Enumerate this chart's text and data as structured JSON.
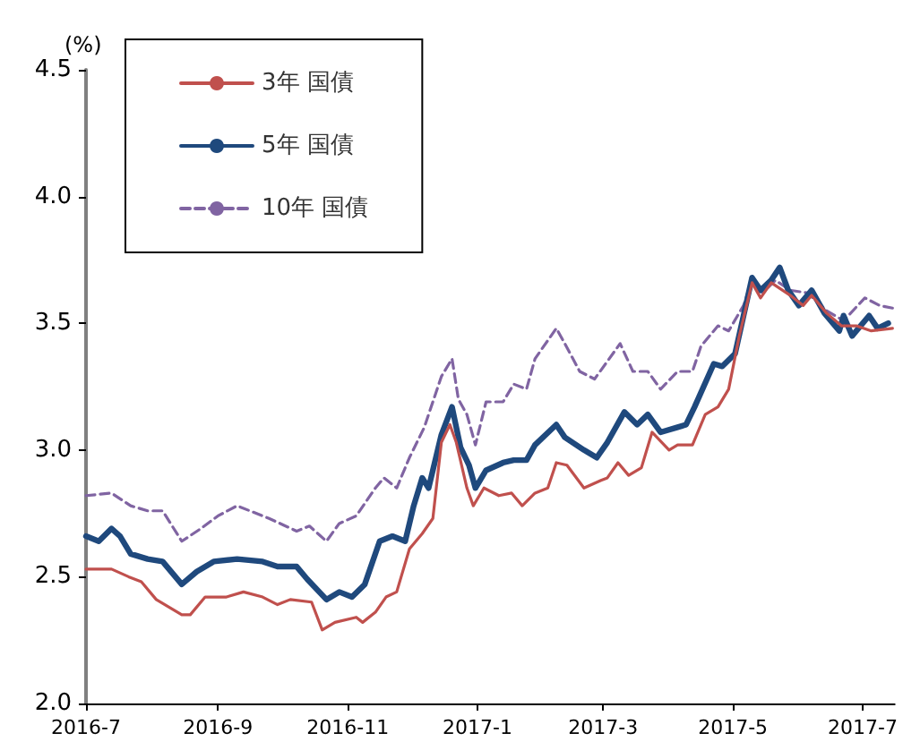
{
  "chart_data": {
    "type": "line",
    "ylabel": "(%)",
    "xlim": [
      "2016-07-01",
      "2017-07-16"
    ],
    "xticks": [
      {
        "value": "2016-07",
        "label": "2016-7"
      },
      {
        "value": "2016-09",
        "label": "2016-9"
      },
      {
        "value": "2016-11",
        "label": "2016-11"
      },
      {
        "value": "2017-01",
        "label": "2017-1"
      },
      {
        "value": "2017-03",
        "label": "2017-3"
      },
      {
        "value": "2017-05",
        "label": "2017-5"
      },
      {
        "value": "2017-07",
        "label": "2017-7"
      }
    ],
    "ylim": [
      2.0,
      4.5
    ],
    "yticks": [
      {
        "value": 2,
        "label": "2.0"
      },
      {
        "value": 2.5,
        "label": "2.5"
      },
      {
        "value": 3,
        "label": "3.0"
      },
      {
        "value": 3.5,
        "label": "3.5"
      },
      {
        "value": 4,
        "label": "4.0"
      },
      {
        "value": 4.5,
        "label": "4.5"
      }
    ],
    "grid": false,
    "legend": "top left",
    "marker": "none",
    "series": [
      {
        "name": "3年 国債",
        "color": "#c0504d",
        "line_style": "solid",
        "x": [
          "2016-07-01",
          "2016-07-13",
          "2016-07-21",
          "2016-07-27",
          "2016-08-03",
          "2016-08-15",
          "2016-08-19",
          "2016-08-26",
          "2016-09-05",
          "2016-09-13",
          "2016-09-22",
          "2016-09-29",
          "2016-10-05",
          "2016-10-15",
          "2016-10-20",
          "2016-10-26",
          "2016-11-05",
          "2016-11-08",
          "2016-11-14",
          "2016-11-19",
          "2016-11-24",
          "2016-11-30",
          "2016-12-06",
          "2016-12-11",
          "2016-12-15",
          "2016-12-19",
          "2016-12-22",
          "2016-12-27",
          "2016-12-30",
          "2017-01-04",
          "2017-01-11",
          "2017-01-17",
          "2017-01-22",
          "2017-01-28",
          "2017-02-03",
          "2017-02-07",
          "2017-02-12",
          "2017-02-20",
          "2017-02-28",
          "2017-03-03",
          "2017-03-08",
          "2017-03-13",
          "2017-03-19",
          "2017-03-24",
          "2017-04-01",
          "2017-04-05",
          "2017-04-12",
          "2017-04-18",
          "2017-04-24",
          "2017-04-29",
          "2017-05-04",
          "2017-05-10",
          "2017-05-14",
          "2017-05-19",
          "2017-05-28",
          "2017-06-03",
          "2017-06-07",
          "2017-06-14",
          "2017-06-21",
          "2017-06-28",
          "2017-07-05",
          "2017-07-15"
        ],
        "values": [
          2.53,
          2.53,
          2.5,
          2.48,
          2.41,
          2.35,
          2.35,
          2.42,
          2.42,
          2.44,
          2.42,
          2.39,
          2.41,
          2.4,
          2.29,
          2.32,
          2.34,
          2.32,
          2.36,
          2.42,
          2.44,
          2.61,
          2.67,
          2.73,
          3.03,
          3.1,
          3.03,
          2.85,
          2.78,
          2.85,
          2.82,
          2.83,
          2.78,
          2.83,
          2.85,
          2.95,
          2.94,
          2.85,
          2.88,
          2.89,
          2.95,
          2.9,
          2.93,
          3.07,
          3.0,
          3.02,
          3.02,
          3.14,
          3.17,
          3.24,
          3.45,
          3.66,
          3.6,
          3.66,
          3.61,
          3.57,
          3.61,
          3.54,
          3.49,
          3.49,
          3.47,
          3.48
        ]
      },
      {
        "name": "5年 国債",
        "color": "#1f497d",
        "line_style": "solid",
        "x": [
          "2016-07-01",
          "2016-07-07",
          "2016-07-13",
          "2016-07-17",
          "2016-07-22",
          "2016-07-30",
          "2016-08-06",
          "2016-08-15",
          "2016-08-22",
          "2016-08-30",
          "2016-09-10",
          "2016-09-22",
          "2016-09-29",
          "2016-10-08",
          "2016-10-13",
          "2016-10-22",
          "2016-10-28",
          "2016-11-03",
          "2016-11-09",
          "2016-11-16",
          "2016-11-22",
          "2016-11-28",
          "2016-12-02",
          "2016-12-06",
          "2016-12-09",
          "2016-12-15",
          "2016-12-20",
          "2016-12-24",
          "2016-12-28",
          "2016-12-31",
          "2017-01-05",
          "2017-01-13",
          "2017-01-18",
          "2017-01-24",
          "2017-01-28",
          "2017-02-07",
          "2017-02-11",
          "2017-02-20",
          "2017-02-26",
          "2017-03-03",
          "2017-03-11",
          "2017-03-17",
          "2017-03-22",
          "2017-03-28",
          "2017-04-05",
          "2017-04-09",
          "2017-04-13",
          "2017-04-22",
          "2017-04-26",
          "2017-05-02",
          "2017-05-06",
          "2017-05-10",
          "2017-05-14",
          "2017-05-19",
          "2017-05-23",
          "2017-05-27",
          "2017-06-01",
          "2017-06-07",
          "2017-06-13",
          "2017-06-20",
          "2017-06-22",
          "2017-06-26",
          "2017-07-04",
          "2017-07-08",
          "2017-07-13"
        ],
        "values": [
          2.66,
          2.64,
          2.69,
          2.66,
          2.59,
          2.57,
          2.56,
          2.47,
          2.52,
          2.56,
          2.57,
          2.56,
          2.54,
          2.54,
          2.49,
          2.41,
          2.44,
          2.42,
          2.47,
          2.64,
          2.66,
          2.64,
          2.78,
          2.89,
          2.85,
          3.06,
          3.17,
          3.01,
          2.94,
          2.85,
          2.92,
          2.95,
          2.96,
          2.96,
          3.02,
          3.1,
          3.05,
          3.0,
          2.97,
          3.03,
          3.15,
          3.1,
          3.14,
          3.07,
          3.09,
          3.1,
          3.17,
          3.34,
          3.33,
          3.38,
          3.53,
          3.68,
          3.63,
          3.67,
          3.72,
          3.63,
          3.57,
          3.63,
          3.54,
          3.47,
          3.53,
          3.45,
          3.53,
          3.48,
          3.5
        ]
      },
      {
        "name": "10年 国債",
        "color": "#8064a2",
        "line_style": "dashed",
        "x": [
          "2016-07-01",
          "2016-07-13",
          "2016-07-22",
          "2016-07-30",
          "2016-08-06",
          "2016-08-15",
          "2016-08-24",
          "2016-09-01",
          "2016-09-10",
          "2016-09-25",
          "2016-10-08",
          "2016-10-14",
          "2016-10-22",
          "2016-10-28",
          "2016-11-05",
          "2016-11-14",
          "2016-11-18",
          "2016-11-24",
          "2016-11-30",
          "2016-12-07",
          "2016-12-15",
          "2016-12-20",
          "2016-12-23",
          "2016-12-27",
          "2016-12-31",
          "2017-01-05",
          "2017-01-13",
          "2017-01-18",
          "2017-01-24",
          "2017-01-28",
          "2017-02-07",
          "2017-02-11",
          "2017-02-18",
          "2017-02-25",
          "2017-03-03",
          "2017-03-09",
          "2017-03-15",
          "2017-03-22",
          "2017-03-28",
          "2017-04-05",
          "2017-04-12",
          "2017-04-16",
          "2017-04-24",
          "2017-04-29",
          "2017-05-06",
          "2017-05-10",
          "2017-05-15",
          "2017-05-21",
          "2017-05-28",
          "2017-06-05",
          "2017-06-14",
          "2017-06-22",
          "2017-07-02",
          "2017-07-09",
          "2017-07-15"
        ],
        "values": [
          2.82,
          2.83,
          2.78,
          2.76,
          2.76,
          2.64,
          2.69,
          2.74,
          2.78,
          2.73,
          2.68,
          2.7,
          2.64,
          2.71,
          2.74,
          2.85,
          2.89,
          2.85,
          2.97,
          3.09,
          3.29,
          3.36,
          3.2,
          3.14,
          3.02,
          3.19,
          3.19,
          3.26,
          3.24,
          3.36,
          3.48,
          3.42,
          3.31,
          3.28,
          3.35,
          3.42,
          3.31,
          3.31,
          3.24,
          3.31,
          3.31,
          3.41,
          3.49,
          3.47,
          3.57,
          3.67,
          3.62,
          3.67,
          3.63,
          3.62,
          3.55,
          3.51,
          3.6,
          3.57,
          3.56
        ]
      }
    ]
  }
}
